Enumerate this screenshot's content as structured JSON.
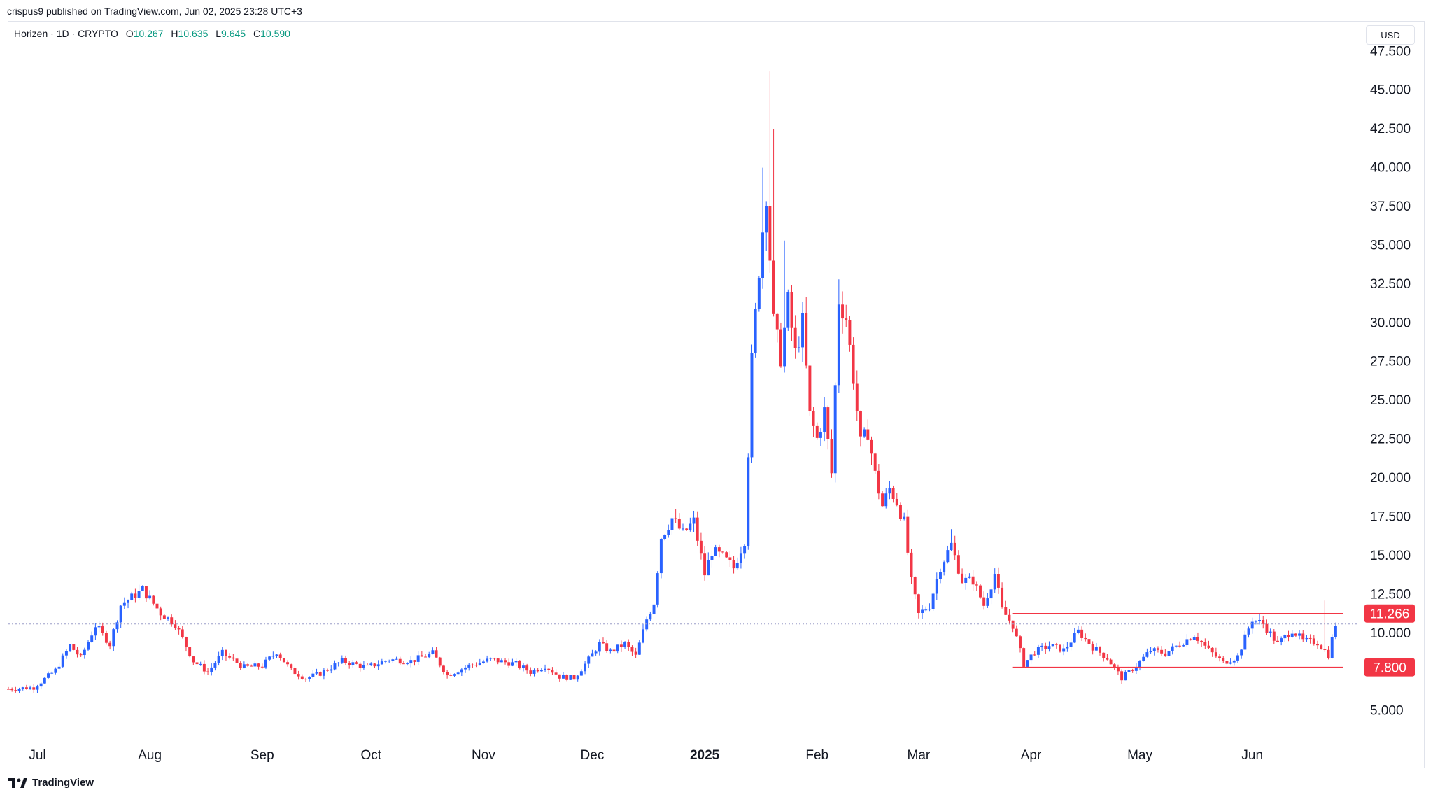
{
  "header": {
    "published": "crispus9 published on TradingView.com, Jun 02, 2025 23:28 UTC+3"
  },
  "legend": {
    "symbol": "Horizen",
    "interval": "1D",
    "exchange": "CRYPTO",
    "open_label": "O",
    "open": "10.267",
    "high_label": "H",
    "high": "10.635",
    "low_label": "L",
    "low": "9.645",
    "close_label": "C",
    "close": "10.590"
  },
  "currency_button": "USD",
  "footer": {
    "brand": "TradingView",
    "logo_icon": "tradingview-logo-icon"
  },
  "colors": {
    "up": "#2962ff",
    "down": "#f23645",
    "level_line": "#f23645",
    "price_line": "#9c9ec8",
    "legend_values": "#089981",
    "axis_text": "#131722"
  },
  "chart_data": {
    "type": "candlestick",
    "title": "",
    "xlabel": "",
    "ylabel": "",
    "ylim": [
      3.0,
      49.0
    ],
    "grid": false,
    "y_ticks": [
      "5.000",
      "10.000",
      "12.500",
      "15.000",
      "17.500",
      "20.000",
      "22.500",
      "25.000",
      "27.500",
      "30.000",
      "32.500",
      "35.000",
      "37.500",
      "40.000",
      "42.500",
      "45.000",
      "47.500"
    ],
    "x_ticks": [
      {
        "label": "Jul",
        "date": "2024-07-01",
        "bold": false
      },
      {
        "label": "Aug",
        "date": "2024-08-01",
        "bold": false
      },
      {
        "label": "Sep",
        "date": "2024-09-01",
        "bold": false
      },
      {
        "label": "Oct",
        "date": "2024-10-01",
        "bold": false
      },
      {
        "label": "Nov",
        "date": "2024-11-01",
        "bold": false
      },
      {
        "label": "Dec",
        "date": "2024-12-01",
        "bold": false
      },
      {
        "label": "2025",
        "date": "2025-01-01",
        "bold": true
      },
      {
        "label": "Feb",
        "date": "2025-02-01",
        "bold": false
      },
      {
        "label": "Mar",
        "date": "2025-03-01",
        "bold": false
      },
      {
        "label": "Apr",
        "date": "2025-04-01",
        "bold": false
      },
      {
        "label": "May",
        "date": "2025-05-01",
        "bold": false
      },
      {
        "label": "Jun",
        "date": "2025-06-01",
        "bold": false
      }
    ],
    "x_range": [
      "2024-06-23",
      "2025-06-30"
    ],
    "close_path": [
      [
        "2024-06-23",
        6.4
      ],
      [
        "2024-06-30",
        6.5
      ],
      [
        "2024-07-06",
        7.6
      ],
      [
        "2024-07-10",
        9.2
      ],
      [
        "2024-07-13",
        8.4
      ],
      [
        "2024-07-17",
        10.5
      ],
      [
        "2024-07-21",
        9.3
      ],
      [
        "2024-07-24",
        11.8
      ],
      [
        "2024-07-30",
        12.8
      ],
      [
        "2024-08-04",
        11.3
      ],
      [
        "2024-08-08",
        10.6
      ],
      [
        "2024-08-13",
        8.2
      ],
      [
        "2024-08-17",
        7.5
      ],
      [
        "2024-08-21",
        8.7
      ],
      [
        "2024-08-27",
        7.8
      ],
      [
        "2024-09-01",
        7.9
      ],
      [
        "2024-09-05",
        8.8
      ],
      [
        "2024-09-09",
        7.6
      ],
      [
        "2024-09-13",
        7.1
      ],
      [
        "2024-09-17",
        7.4
      ],
      [
        "2024-09-23",
        8.2
      ],
      [
        "2024-09-30",
        7.8
      ],
      [
        "2024-10-06",
        8.3
      ],
      [
        "2024-10-12",
        8.2
      ],
      [
        "2024-10-18",
        8.7
      ],
      [
        "2024-10-22",
        7.3
      ],
      [
        "2024-10-28",
        7.9
      ],
      [
        "2024-11-03",
        8.3
      ],
      [
        "2024-11-10",
        8.0
      ],
      [
        "2024-11-14",
        7.5
      ],
      [
        "2024-11-18",
        7.9
      ],
      [
        "2024-11-22",
        7.2
      ],
      [
        "2024-11-26",
        7.1
      ],
      [
        "2024-11-30",
        8.3
      ],
      [
        "2024-12-03",
        9.3
      ],
      [
        "2024-12-06",
        8.8
      ],
      [
        "2024-12-10",
        9.3
      ],
      [
        "2024-12-13",
        8.5
      ],
      [
        "2024-12-16",
        10.9
      ],
      [
        "2024-12-18",
        12.0
      ],
      [
        "2024-12-20",
        16.2
      ],
      [
        "2024-12-23",
        17.4
      ],
      [
        "2024-12-26",
        16.4
      ],
      [
        "2024-12-29",
        17.2
      ],
      [
        "2025-01-01",
        13.8
      ],
      [
        "2025-01-03",
        15.3
      ],
      [
        "2025-01-06",
        14.9
      ],
      [
        "2025-01-09",
        14.2
      ],
      [
        "2025-01-12",
        16.0
      ],
      [
        "2025-01-14",
        27.5
      ],
      [
        "2025-01-16",
        33.5
      ],
      [
        "2025-01-18",
        38.5
      ],
      [
        "2025-01-20",
        30.0
      ],
      [
        "2025-01-22",
        27.8
      ],
      [
        "2025-01-24",
        31.3
      ],
      [
        "2025-01-26",
        28.0
      ],
      [
        "2025-01-28",
        30.0
      ],
      [
        "2025-01-30",
        24.0
      ],
      [
        "2025-02-01",
        22.5
      ],
      [
        "2025-02-03",
        24.3
      ],
      [
        "2025-02-05",
        20.3
      ],
      [
        "2025-02-07",
        31.5
      ],
      [
        "2025-02-09",
        30.3
      ],
      [
        "2025-02-11",
        26.5
      ],
      [
        "2025-02-13",
        22.2
      ],
      [
        "2025-02-15",
        23.0
      ],
      [
        "2025-02-17",
        20.2
      ],
      [
        "2025-02-19",
        18.2
      ],
      [
        "2025-02-21",
        19.3
      ],
      [
        "2025-02-23",
        18.5
      ],
      [
        "2025-02-25",
        17.1
      ],
      [
        "2025-02-27",
        13.3
      ],
      [
        "2025-03-01",
        11.2
      ],
      [
        "2025-03-04",
        11.8
      ],
      [
        "2025-03-07",
        14.3
      ],
      [
        "2025-03-10",
        15.7
      ],
      [
        "2025-03-13",
        13.4
      ],
      [
        "2025-03-16",
        13.4
      ],
      [
        "2025-03-19",
        11.8
      ],
      [
        "2025-03-22",
        13.8
      ],
      [
        "2025-03-24",
        11.5
      ],
      [
        "2025-03-27",
        10.5
      ],
      [
        "2025-03-30",
        8.0
      ],
      [
        "2025-04-02",
        8.8
      ],
      [
        "2025-04-06",
        9.2
      ],
      [
        "2025-04-10",
        8.9
      ],
      [
        "2025-04-14",
        10.1
      ],
      [
        "2025-04-18",
        9.1
      ],
      [
        "2025-04-22",
        8.4
      ],
      [
        "2025-04-26",
        7.1
      ],
      [
        "2025-04-30",
        7.9
      ],
      [
        "2025-05-04",
        8.9
      ],
      [
        "2025-05-08",
        8.7
      ],
      [
        "2025-05-12",
        9.3
      ],
      [
        "2025-05-16",
        9.9
      ],
      [
        "2025-05-20",
        8.9
      ],
      [
        "2025-05-24",
        8.1
      ],
      [
        "2025-05-28",
        8.5
      ],
      [
        "2025-06-01",
        10.9
      ],
      [
        "2025-06-04",
        10.6
      ],
      [
        "2025-06-08",
        9.3
      ],
      [
        "2025-06-12",
        10.2
      ],
      [
        "2025-06-15",
        9.5
      ],
      [
        "2025-06-19",
        9.4
      ],
      [
        "2025-06-22",
        8.6
      ],
      [
        "2025-06-24",
        10.6
      ]
    ],
    "spike_highs": [
      [
        "2025-01-19",
        46.2
      ],
      [
        "2025-01-20",
        42.5
      ],
      [
        "2025-01-17",
        40.0
      ],
      [
        "2025-01-23",
        35.3
      ],
      [
        "2025-02-07",
        32.8
      ],
      [
        "2025-01-14",
        28.0
      ],
      [
        "2025-03-10",
        16.7
      ],
      [
        "2025-06-21",
        12.1
      ]
    ],
    "levels": [
      {
        "label": "11.266",
        "value": 11.266,
        "from": "2025-03-27",
        "style": "solid"
      },
      {
        "label": "7.800",
        "value": 7.8,
        "from": "2025-03-27",
        "style": "solid"
      }
    ],
    "last_price": 10.59
  }
}
